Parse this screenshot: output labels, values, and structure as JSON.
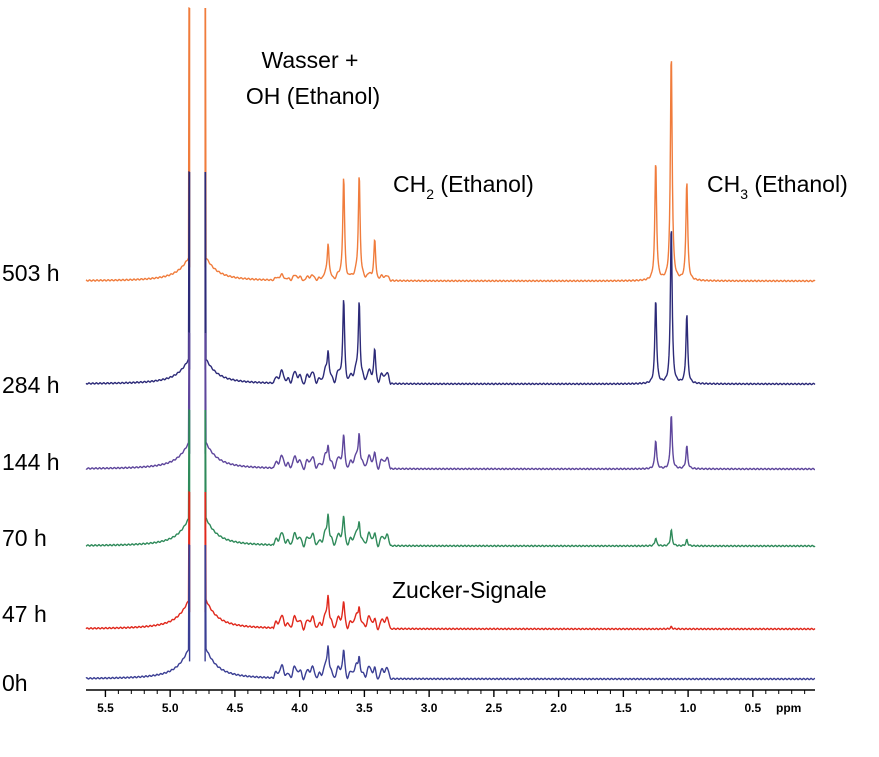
{
  "chart_data": {
    "type": "line",
    "title": "",
    "xlabel": "ppm",
    "x_reversed": true,
    "xlim": [
      5.65,
      0.02
    ],
    "x_ticks": [
      5.5,
      5.0,
      4.5,
      4.0,
      3.5,
      3.0,
      2.5,
      2.0,
      1.5,
      1.0,
      0.5
    ],
    "x_tick_labels": [
      "5.5",
      "5.0",
      "4.5",
      "4.0",
      "3.5",
      "3.0",
      "2.5",
      "2.0",
      "1.5",
      "1.0",
      "0.5"
    ],
    "grid": false,
    "legend": "none",
    "series": [
      {
        "name": "503 h",
        "color": "#f07c3c",
        "water_peak_ppm": [
          4.85,
          4.73
        ],
        "peaks": [
          {
            "ppm": 3.78,
            "height": 0.35
          },
          {
            "ppm": 3.66,
            "height": 1.0
          },
          {
            "ppm": 3.54,
            "height": 1.05
          },
          {
            "ppm": 3.42,
            "height": 0.38
          },
          {
            "ppm": 1.25,
            "height": 1.2
          },
          {
            "ppm": 1.13,
            "height": 2.3
          },
          {
            "ppm": 1.01,
            "height": 1.0
          }
        ]
      },
      {
        "name": "284 h",
        "color": "#2c2a78",
        "water_peak_ppm": [
          4.85,
          4.73
        ],
        "peaks": [
          {
            "ppm": 3.78,
            "height": 0.28
          },
          {
            "ppm": 3.66,
            "height": 0.75
          },
          {
            "ppm": 3.54,
            "height": 0.8
          },
          {
            "ppm": 3.42,
            "height": 0.28
          },
          {
            "ppm": 1.25,
            "height": 0.85
          },
          {
            "ppm": 1.13,
            "height": 1.6
          },
          {
            "ppm": 1.01,
            "height": 0.7
          }
        ]
      },
      {
        "name": "144 h",
        "color": "#5e469c",
        "water_peak_ppm": [
          4.85,
          4.73
        ],
        "peaks": [
          {
            "ppm": 3.78,
            "height": 0.18
          },
          {
            "ppm": 3.66,
            "height": 0.24
          },
          {
            "ppm": 3.54,
            "height": 0.33
          },
          {
            "ppm": 3.42,
            "height": 0.1
          },
          {
            "ppm": 1.25,
            "height": 0.29
          },
          {
            "ppm": 1.13,
            "height": 0.55
          },
          {
            "ppm": 1.01,
            "height": 0.23
          }
        ]
      },
      {
        "name": "70 h",
        "color": "#2f8a5a",
        "water_peak_ppm": [
          4.85,
          4.73
        ],
        "peaks": [
          {
            "ppm": 3.78,
            "height": 0.26
          },
          {
            "ppm": 3.66,
            "height": 0.2
          },
          {
            "ppm": 3.54,
            "height": 0.22
          },
          {
            "ppm": 3.42,
            "height": 0.06
          },
          {
            "ppm": 1.25,
            "height": 0.08
          },
          {
            "ppm": 1.13,
            "height": 0.16
          },
          {
            "ppm": 1.01,
            "height": 0.06
          }
        ]
      },
      {
        "name": "47 h",
        "color": "#e0281c",
        "water_peak_ppm": [
          4.85,
          4.73
        ],
        "peaks": [
          {
            "ppm": 3.78,
            "height": 0.28
          },
          {
            "ppm": 3.66,
            "height": 0.18
          },
          {
            "ppm": 3.54,
            "height": 0.2
          },
          {
            "ppm": 3.42,
            "height": 0.03
          },
          {
            "ppm": 1.13,
            "height": 0.02
          }
        ]
      },
      {
        "name": "0h",
        "color": "#3b3f94",
        "water_peak_ppm": [
          4.85,
          4.73
        ],
        "peaks": [
          {
            "ppm": 3.78,
            "height": 0.28
          },
          {
            "ppm": 3.66,
            "height": 0.2
          },
          {
            "ppm": 3.54,
            "height": 0.2
          },
          {
            "ppm": 3.42,
            "height": 0.04
          }
        ]
      }
    ],
    "annotations": {
      "water_line1": "Wasser +",
      "water_line2": "OH (Ethanol)",
      "ch2_pre": "CH",
      "ch2_sub": "2",
      "ch2_post": " (Ethanol)",
      "ch3_pre": "CH",
      "ch3_sub": "3",
      "ch3_post": " (Ethanol)",
      "sugar": "Zucker-Signale"
    }
  }
}
